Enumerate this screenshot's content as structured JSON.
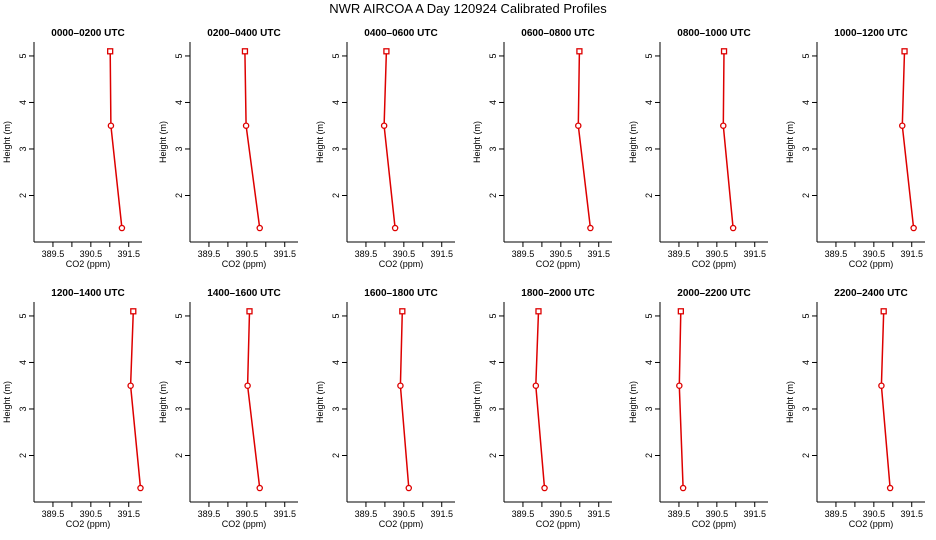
{
  "title": "NWR AIRCOA A  Day 120924  Calibrated Profiles",
  "colors": {
    "series": "#dd0000",
    "axis": "#000000"
  },
  "chart_data": [
    {
      "type": "line",
      "title": "0000–0200 UTC",
      "xlabel": "CO2 (ppm)",
      "ylabel": "Height (m)",
      "xlim": [
        389.0,
        391.85
      ],
      "ylim": [
        1.0,
        5.3
      ],
      "xticks": [
        389.5,
        390.0,
        390.5,
        391.0,
        391.5
      ],
      "xtick_labels": [
        "389.5",
        "",
        "390.5",
        "",
        "391.5"
      ],
      "yticks": [
        2,
        3,
        4,
        5
      ],
      "ytick_labels": [
        "2",
        "3",
        "4",
        "5"
      ],
      "points": [
        {
          "x": 391.01,
          "y": 5.1
        },
        {
          "x": 391.03,
          "y": 3.5
        },
        {
          "x": 391.32,
          "y": 1.3
        }
      ]
    },
    {
      "type": "line",
      "title": "0200–0400 UTC",
      "xlabel": "CO2 (ppm)",
      "ylabel": "Height (m)",
      "xlim": [
        389.0,
        391.85
      ],
      "ylim": [
        1.0,
        5.3
      ],
      "xticks": [
        389.5,
        390.0,
        390.5,
        391.0,
        391.5
      ],
      "xtick_labels": [
        "389.5",
        "",
        "390.5",
        "",
        "391.5"
      ],
      "yticks": [
        2,
        3,
        4,
        5
      ],
      "ytick_labels": [
        "2",
        "3",
        "4",
        "5"
      ],
      "points": [
        {
          "x": 390.45,
          "y": 5.1
        },
        {
          "x": 390.48,
          "y": 3.5
        },
        {
          "x": 390.84,
          "y": 1.3
        }
      ]
    },
    {
      "type": "line",
      "title": "0400–0600 UTC",
      "xlabel": "CO2 (ppm)",
      "ylabel": "Height (m)",
      "xlim": [
        389.0,
        391.85
      ],
      "ylim": [
        1.0,
        5.3
      ],
      "xticks": [
        389.5,
        390.0,
        390.5,
        391.0,
        391.5
      ],
      "xtick_labels": [
        "389.5",
        "",
        "390.5",
        "",
        "391.5"
      ],
      "yticks": [
        2,
        3,
        4,
        5
      ],
      "ytick_labels": [
        "2",
        "3",
        "4",
        "5"
      ],
      "points": [
        {
          "x": 390.04,
          "y": 5.1
        },
        {
          "x": 389.98,
          "y": 3.5
        },
        {
          "x": 390.27,
          "y": 1.3
        }
      ]
    },
    {
      "type": "line",
      "title": "0600–0800 UTC",
      "xlabel": "CO2 (ppm)",
      "ylabel": "Height (m)",
      "xlim": [
        389.0,
        391.85
      ],
      "ylim": [
        1.0,
        5.3
      ],
      "xticks": [
        389.5,
        390.0,
        390.5,
        391.0,
        391.5
      ],
      "xtick_labels": [
        "389.5",
        "",
        "390.5",
        "",
        "391.5"
      ],
      "yticks": [
        2,
        3,
        4,
        5
      ],
      "ytick_labels": [
        "2",
        "3",
        "4",
        "5"
      ],
      "points": [
        {
          "x": 390.99,
          "y": 5.1
        },
        {
          "x": 390.96,
          "y": 3.5
        },
        {
          "x": 391.28,
          "y": 1.3
        }
      ]
    },
    {
      "type": "line",
      "title": "0800–1000 UTC",
      "xlabel": "CO2 (ppm)",
      "ylabel": "Height (m)",
      "xlim": [
        389.0,
        391.85
      ],
      "ylim": [
        1.0,
        5.3
      ],
      "xticks": [
        389.5,
        390.0,
        390.5,
        391.0,
        391.5
      ],
      "xtick_labels": [
        "389.5",
        "",
        "390.5",
        "",
        "391.5"
      ],
      "yticks": [
        2,
        3,
        4,
        5
      ],
      "ytick_labels": [
        "2",
        "3",
        "4",
        "5"
      ],
      "points": [
        {
          "x": 390.69,
          "y": 5.1
        },
        {
          "x": 390.67,
          "y": 3.5
        },
        {
          "x": 390.93,
          "y": 1.3
        }
      ]
    },
    {
      "type": "line",
      "title": "1000–1200 UTC",
      "xlabel": "CO2 (ppm)",
      "ylabel": "Height (m)",
      "xlim": [
        389.0,
        391.85
      ],
      "ylim": [
        1.0,
        5.3
      ],
      "xticks": [
        389.5,
        390.0,
        390.5,
        391.0,
        391.5
      ],
      "xtick_labels": [
        "389.5",
        "",
        "390.5",
        "",
        "391.5"
      ],
      "yticks": [
        2,
        3,
        4,
        5
      ],
      "ytick_labels": [
        "2",
        "3",
        "4",
        "5"
      ],
      "points": [
        {
          "x": 391.31,
          "y": 5.1
        },
        {
          "x": 391.25,
          "y": 3.5
        },
        {
          "x": 391.55,
          "y": 1.3
        }
      ]
    },
    {
      "type": "line",
      "title": "1200–1400 UTC",
      "xlabel": "CO2 (ppm)",
      "ylabel": "Height (m)",
      "xlim": [
        389.0,
        391.85
      ],
      "ylim": [
        1.0,
        5.3
      ],
      "xticks": [
        389.5,
        390.0,
        390.5,
        391.0,
        391.5
      ],
      "xtick_labels": [
        "389.5",
        "",
        "390.5",
        "",
        "391.5"
      ],
      "yticks": [
        2,
        3,
        4,
        5
      ],
      "ytick_labels": [
        "2",
        "3",
        "4",
        "5"
      ],
      "points": [
        {
          "x": 391.62,
          "y": 5.1
        },
        {
          "x": 391.55,
          "y": 3.5
        },
        {
          "x": 391.81,
          "y": 1.3
        }
      ]
    },
    {
      "type": "line",
      "title": "1400–1600 UTC",
      "xlabel": "CO2 (ppm)",
      "ylabel": "Height (m)",
      "xlim": [
        389.0,
        391.85
      ],
      "ylim": [
        1.0,
        5.3
      ],
      "xticks": [
        389.5,
        390.0,
        390.5,
        391.0,
        391.5
      ],
      "xtick_labels": [
        "389.5",
        "",
        "390.5",
        "",
        "391.5"
      ],
      "yticks": [
        2,
        3,
        4,
        5
      ],
      "ytick_labels": [
        "2",
        "3",
        "4",
        "5"
      ],
      "points": [
        {
          "x": 390.57,
          "y": 5.1
        },
        {
          "x": 390.52,
          "y": 3.5
        },
        {
          "x": 390.84,
          "y": 1.3
        }
      ]
    },
    {
      "type": "line",
      "title": "1600–1800 UTC",
      "xlabel": "CO2 (ppm)",
      "ylabel": "Height (m)",
      "xlim": [
        389.0,
        391.85
      ],
      "ylim": [
        1.0,
        5.3
      ],
      "xticks": [
        389.5,
        390.0,
        390.5,
        391.0,
        391.5
      ],
      "xtick_labels": [
        "389.5",
        "",
        "390.5",
        "",
        "391.5"
      ],
      "yticks": [
        2,
        3,
        4,
        5
      ],
      "ytick_labels": [
        "2",
        "3",
        "4",
        "5"
      ],
      "points": [
        {
          "x": 390.46,
          "y": 5.1
        },
        {
          "x": 390.41,
          "y": 3.5
        },
        {
          "x": 390.63,
          "y": 1.3
        }
      ]
    },
    {
      "type": "line",
      "title": "1800–2000 UTC",
      "xlabel": "CO2 (ppm)",
      "ylabel": "Height (m)",
      "xlim": [
        389.0,
        391.85
      ],
      "ylim": [
        1.0,
        5.3
      ],
      "xticks": [
        389.5,
        390.0,
        390.5,
        391.0,
        391.5
      ],
      "xtick_labels": [
        "389.5",
        "",
        "390.5",
        "",
        "391.5"
      ],
      "yticks": [
        2,
        3,
        4,
        5
      ],
      "ytick_labels": [
        "2",
        "3",
        "4",
        "5"
      ],
      "points": [
        {
          "x": 389.91,
          "y": 5.1
        },
        {
          "x": 389.84,
          "y": 3.5
        },
        {
          "x": 390.07,
          "y": 1.3
        }
      ]
    },
    {
      "type": "line",
      "title": "2000–2200 UTC",
      "xlabel": "CO2 (ppm)",
      "ylabel": "Height (m)",
      "xlim": [
        389.0,
        391.85
      ],
      "ylim": [
        1.0,
        5.3
      ],
      "xticks": [
        389.5,
        390.0,
        390.5,
        391.0,
        391.5
      ],
      "xtick_labels": [
        "389.5",
        "",
        "390.5",
        "",
        "391.5"
      ],
      "yticks": [
        2,
        3,
        4,
        5
      ],
      "ytick_labels": [
        "2",
        "3",
        "4",
        "5"
      ],
      "points": [
        {
          "x": 389.55,
          "y": 5.1
        },
        {
          "x": 389.51,
          "y": 3.5
        },
        {
          "x": 389.61,
          "y": 1.3
        }
      ]
    },
    {
      "type": "line",
      "title": "2200–2400 UTC",
      "xlabel": "CO2 (ppm)",
      "ylabel": "Height (m)",
      "xlim": [
        389.0,
        391.85
      ],
      "ylim": [
        1.0,
        5.3
      ],
      "xticks": [
        389.5,
        390.0,
        390.5,
        391.0,
        391.5
      ],
      "xtick_labels": [
        "389.5",
        "",
        "390.5",
        "",
        "391.5"
      ],
      "yticks": [
        2,
        3,
        4,
        5
      ],
      "ytick_labels": [
        "2",
        "3",
        "4",
        "5"
      ],
      "points": [
        {
          "x": 390.76,
          "y": 5.1
        },
        {
          "x": 390.7,
          "y": 3.5
        },
        {
          "x": 390.93,
          "y": 1.3
        }
      ]
    }
  ]
}
